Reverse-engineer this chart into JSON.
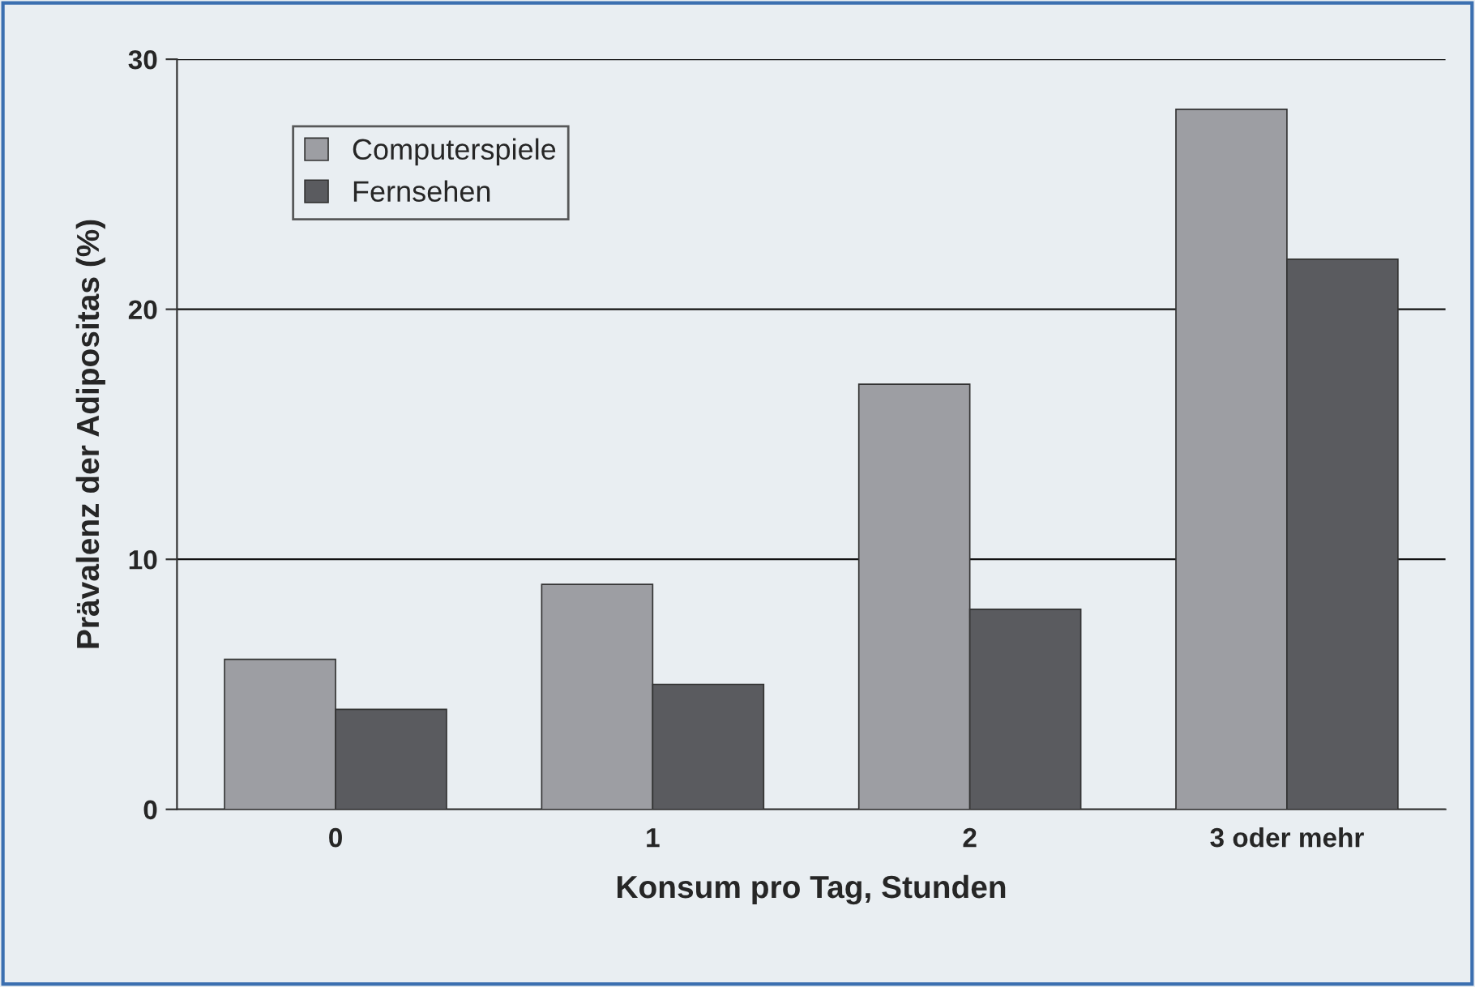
{
  "chart_data": {
    "type": "bar",
    "xlabel": "Konsum pro Tag, Stunden",
    "ylabel": "Prävalenz der Adipositas (%)",
    "categories": [
      "0",
      "1",
      "2",
      "3 oder mehr"
    ],
    "series": [
      {
        "name": "Computerspiele",
        "color": "#9d9ea3",
        "values": [
          6,
          9,
          17,
          28
        ]
      },
      {
        "name": "Fernsehen",
        "color": "#5a5b5f",
        "values": [
          4,
          5,
          8,
          22
        ]
      }
    ],
    "ylim": [
      0,
      30
    ],
    "yticks": [
      0,
      10,
      20,
      30
    ],
    "grid": "y",
    "legend": "top left"
  }
}
